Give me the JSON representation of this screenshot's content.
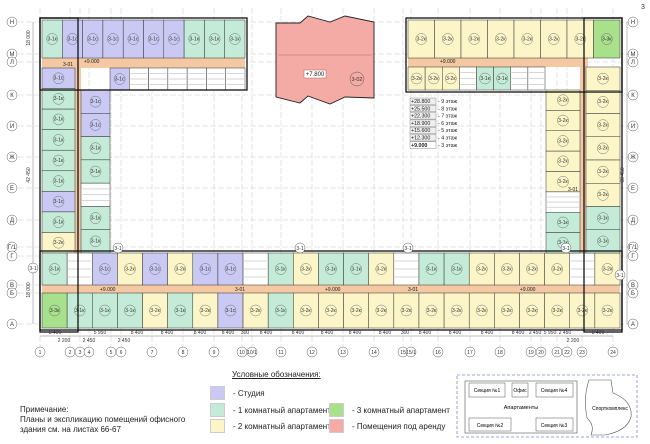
{
  "corner_mark": "3",
  "colors": {
    "studio": "#c9c9f4",
    "one_room": "#c4ebd7",
    "two_room": "#fbf5c8",
    "three_room": "#a9e08c",
    "rent": "#f4aaa5",
    "corridor": "#f3c8a2",
    "core": "#ffffff"
  },
  "unit_labels": {
    "1с": "3-1с",
    "1к": "3-1к",
    "2к": "3-2к",
    "3к": "3-3к"
  },
  "plan": {
    "strips": {
      "top_left_top": [
        "1к",
        "1с",
        "1с",
        "1с",
        "1с",
        "1с",
        "1с",
        "1к",
        "1к",
        "1к"
      ],
      "top_left_bottom": [
        "1с",
        "core",
        "core",
        "core",
        "core",
        "core",
        "core"
      ],
      "left_outer": [
        "1с",
        "1к",
        "1к",
        "1к",
        "1к",
        "1к",
        "1с",
        "1к",
        "2к"
      ],
      "left_inner": [
        "1с",
        "1с",
        "1к",
        "1к",
        "core",
        "1к",
        "1к"
      ],
      "bottom_top": [
        "1к",
        "core",
        "1с",
        "2к",
        "1с",
        "2к",
        "1с",
        "1с",
        "core",
        "1к",
        "2к",
        "1к",
        "1к",
        "2к",
        "core",
        "1к",
        "1к",
        "2к",
        "2к",
        "2к",
        "2к",
        "core",
        "2к"
      ],
      "bottom_bottom": [
        "3к",
        "1к",
        "1к",
        "1к",
        "2к",
        "1к",
        "2к",
        "1с",
        "2к",
        "1к",
        "2к",
        "2к",
        "2к",
        "2к",
        "2к",
        "2к",
        "2к",
        "2к",
        "2к",
        "2к",
        "2к",
        "2к",
        "2к"
      ],
      "top_right_top": [
        "2к",
        "2к",
        "2к",
        "2к",
        "2к",
        "2к",
        "2к",
        "3к"
      ],
      "top_right_bottom": [
        "2к",
        "2к",
        "2к",
        "core",
        "1к",
        "1к",
        "core",
        "core"
      ],
      "right_inner": [
        "2к",
        "2к",
        "2к",
        "2к",
        "2к",
        "core",
        "1к",
        "1к"
      ],
      "right_outer": [
        "2к",
        "2к",
        "2к",
        "2к",
        "2к",
        "2к",
        "1к",
        "1к"
      ]
    },
    "rent_block": {
      "level": "+7.800",
      "room": "3-02"
    },
    "corridor_level": "+9.000",
    "stair_code": "3-01",
    "section_code": "3-1",
    "floor_levels": [
      {
        "level": "+28.800",
        "floor": "- 9 этаж"
      },
      {
        "level": "+25.500",
        "floor": "- 8 этаж"
      },
      {
        "level": "+22.300",
        "floor": "- 7 этаж"
      },
      {
        "level": "+18.900",
        "floor": "- 6 этаж"
      },
      {
        "level": "+15.600",
        "floor": "- 5 этаж"
      },
      {
        "level": "+12.300",
        "floor": "- 4 этаж"
      },
      {
        "level": "+9.000",
        "floor": "- 3 этаж"
      }
    ],
    "row_axes": [
      "Н",
      "М",
      "Л",
      "К",
      "И",
      "Ж",
      "Е",
      "Д",
      "Г/1",
      "Г",
      "В",
      "Б",
      "А"
    ],
    "column_axes": [
      "1",
      "2",
      "3",
      "4",
      "5",
      "6",
      "7",
      "8",
      "9",
      "10",
      "10/1",
      "11",
      "12",
      "13",
      "14",
      "15",
      "15/1",
      "16",
      "17",
      "18",
      "19",
      "20",
      "21",
      "22",
      "23",
      "24"
    ],
    "dimensions_main": [
      "8 400",
      "5 950",
      "8 400",
      "8 400",
      "8 400",
      "8 400",
      "300",
      "8 400",
      "8 400",
      "8 400",
      "8 400",
      "8 400",
      "300",
      "8 400",
      "8 400",
      "8 400",
      "8 400",
      "2 450",
      "5 950",
      "2 450",
      "8 400"
    ],
    "dimensions_secondary": [
      "2 200",
      "2 450",
      "2 450",
      "2 200"
    ],
    "dimensions_left": [
      "18 000",
      "42 450",
      "18 000"
    ],
    "dimensions_right": [
      "60 450"
    ]
  },
  "legend": {
    "title": "Условные обозначения:",
    "items": [
      {
        "label": "- Студия"
      },
      {
        "label": "- 1 комнатный апартамент"
      },
      {
        "label": "- 2 комнатный апартамент"
      },
      {
        "label": "- 3 комнатный апартамент"
      },
      {
        "label": "- Помещения под аренду"
      }
    ]
  },
  "note": {
    "title": "Примечание:",
    "line1": "Планы и экспликацию помещений офисного",
    "line2": "здания см. на листах 66-67"
  },
  "key_plan": {
    "section1": "Секция №1",
    "office": "Офис",
    "section4": "Секция №4",
    "apartments": "Апартаменты",
    "section2": "Секция №2",
    "section3": "Секция №3",
    "sport": "Спорткомплекс"
  }
}
